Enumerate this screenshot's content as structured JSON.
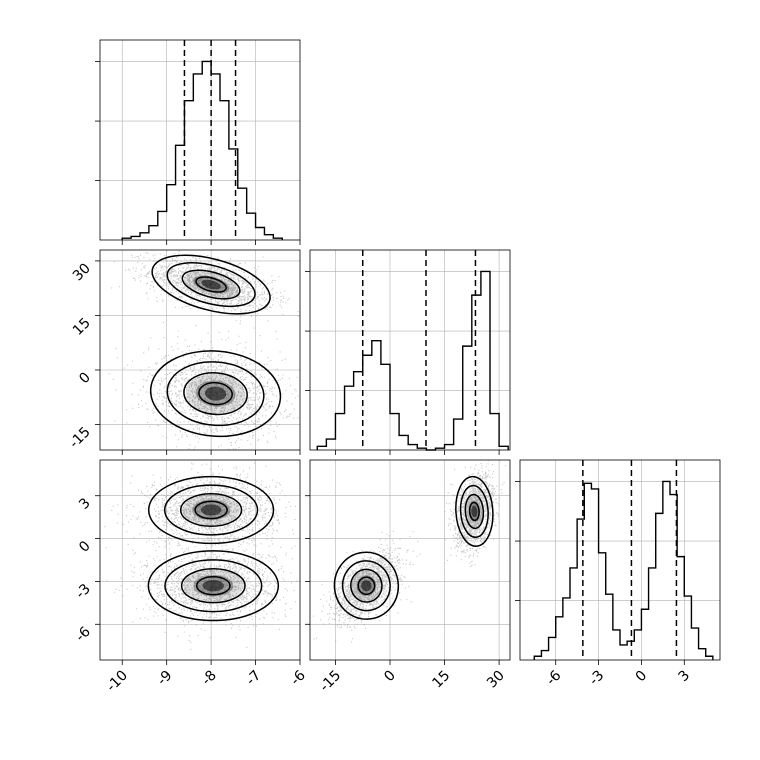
{
  "chart_data": {
    "type": "corner",
    "title": "",
    "colors": {
      "ink": "#000000",
      "grid": "#b0b0b0",
      "scatter": "#9a9a9a",
      "density": "#000000"
    },
    "grid": true,
    "diagonal": [
      {
        "type": "histogram",
        "param_index": 0,
        "xlim": [
          -10.5,
          -6
        ],
        "bin_edges": [
          -10.0,
          -9.8,
          -9.6,
          -9.4,
          -9.2,
          -9.0,
          -8.8,
          -8.6,
          -8.4,
          -8.2,
          -8.0,
          -7.8,
          -7.6,
          -7.4,
          -7.2,
          -7.0,
          -6.8,
          -6.6,
          -6.4
        ],
        "counts": [
          0.01,
          0.02,
          0.04,
          0.08,
          0.16,
          0.31,
          0.53,
          0.78,
          0.93,
          1.0,
          0.93,
          0.78,
          0.51,
          0.29,
          0.15,
          0.07,
          0.03,
          0.01
        ],
        "quantiles": [
          -8.6,
          -8.0,
          -7.45
        ]
      },
      {
        "type": "histogram",
        "param_index": 1,
        "xlim": [
          -22,
          33
        ],
        "bin_edges": [
          -20,
          -17.5,
          -15,
          -12.5,
          -10,
          -7.5,
          -5,
          -2.5,
          0,
          2.5,
          5,
          7.5,
          10,
          12.5,
          15,
          17.5,
          20,
          22.5,
          25,
          27.5,
          30,
          32.5
        ],
        "counts": [
          0.02,
          0.06,
          0.2,
          0.35,
          0.43,
          0.52,
          0.6,
          0.47,
          0.2,
          0.08,
          0.03,
          0.01,
          0.0,
          0.01,
          0.03,
          0.17,
          0.57,
          0.85,
          0.98,
          0.2,
          0.02
        ],
        "quantiles": [
          -7.5,
          9.9,
          23.5
        ]
      },
      {
        "type": "histogram",
        "param_index": 2,
        "xlim": [
          -8.5,
          5.5
        ],
        "bin_edges": [
          -7.5,
          -7,
          -6.5,
          -6,
          -5.5,
          -5,
          -4.5,
          -4,
          -3.5,
          -3,
          -2.5,
          -2,
          -1.5,
          -1,
          -0.5,
          0,
          0.5,
          1,
          1.5,
          2,
          2.5,
          3,
          3.5,
          4,
          4.5,
          5
        ],
        "counts": [
          0.02,
          0.05,
          0.12,
          0.23,
          0.33,
          0.49,
          0.75,
          0.94,
          0.91,
          0.57,
          0.35,
          0.16,
          0.08,
          0.1,
          0.16,
          0.27,
          0.49,
          0.78,
          0.95,
          0.88,
          0.55,
          0.34,
          0.17,
          0.06,
          0.02
        ],
        "quantiles": [
          -4.1,
          -0.7,
          2.45
        ]
      }
    ],
    "pairs": [
      {
        "x_param": 0,
        "y_param": 1,
        "xlim": [
          -10.5,
          -6
        ],
        "ylim": [
          -22,
          33
        ],
        "clusters": [
          {
            "mean": [
              -8.0,
              23.5
            ],
            "spread": [
              0.7,
              3.6
            ],
            "tilt": -0.5,
            "weight": 0.5
          },
          {
            "mean": [
              -7.9,
              -6.5
            ],
            "spread": [
              0.75,
              6.0
            ],
            "tilt": -0.15,
            "weight": 0.5
          }
        ]
      },
      {
        "x_param": 0,
        "y_param": 2,
        "xlim": [
          -10.5,
          -6
        ],
        "ylim": [
          -8.5,
          5.5
        ],
        "clusters": [
          {
            "mean": [
              -8.0,
              2.0
            ],
            "spread": [
              0.72,
              1.2
            ],
            "tilt": 0.0,
            "weight": 0.5
          },
          {
            "mean": [
              -7.95,
              -3.3
            ],
            "spread": [
              0.75,
              1.25
            ],
            "tilt": 0.0,
            "weight": 0.5
          }
        ]
      },
      {
        "x_param": 1,
        "y_param": 2,
        "xlim": [
          -22,
          33
        ],
        "ylim": [
          -8.5,
          5.5
        ],
        "clusters": [
          {
            "mean": [
              -6.5,
              -3.3
            ],
            "spread": [
              4.5,
              1.2
            ],
            "tilt": 0.55,
            "weight": 0.5
          },
          {
            "mean": [
              23.2,
              1.9
            ],
            "spread": [
              2.6,
              1.25
            ],
            "tilt": 0.3,
            "weight": 0.5
          }
        ]
      }
    ],
    "axes": {
      "param0_ticks": [
        "-10",
        "-9",
        "-8",
        "-7",
        "-6"
      ],
      "param0_tick_values": [
        -10,
        -9,
        -8,
        -7,
        -6
      ],
      "param1_ticks": [
        "-15",
        "0",
        "15",
        "30"
      ],
      "param1_tick_values": [
        -15,
        0,
        15,
        30
      ],
      "param2_ticks": [
        "-6",
        "-3",
        "0",
        "3"
      ],
      "param2_tick_values": [
        -6,
        -3,
        0,
        3
      ],
      "xlabels": [
        "",
        "",
        ""
      ],
      "ylabels": [
        "",
        "",
        ""
      ]
    }
  }
}
